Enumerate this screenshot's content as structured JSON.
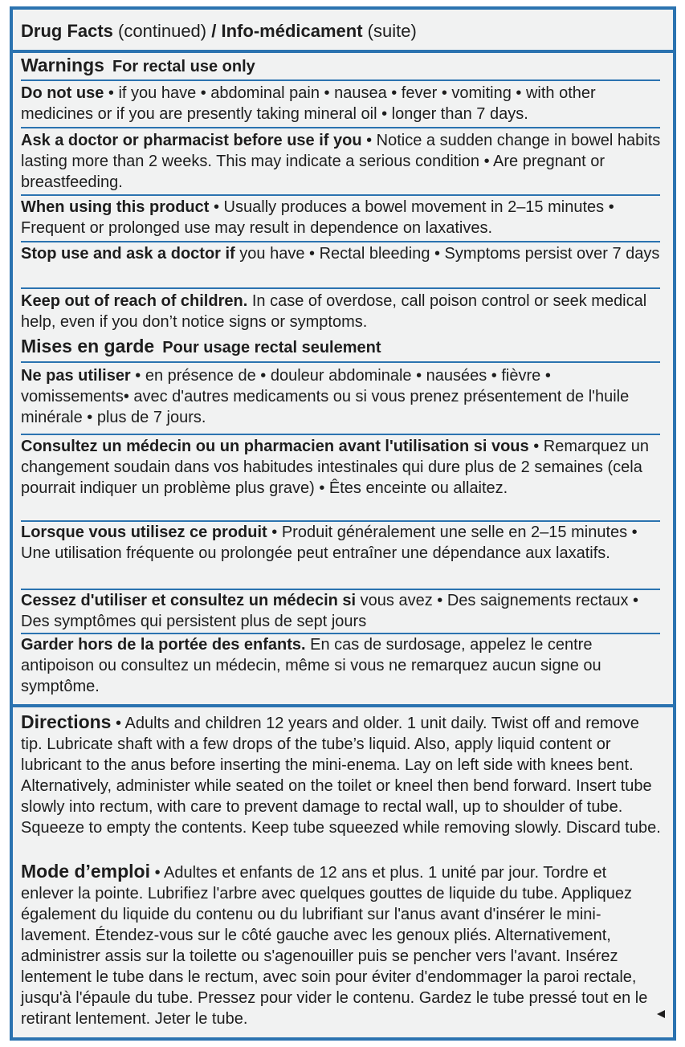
{
  "header": {
    "title": "Drug Facts",
    "title_note": "(continued)",
    "separator": "/",
    "title_fr": "Info-médicament",
    "title_fr_note": "(suite)"
  },
  "warnings": {
    "heading": "Warnings",
    "subheading": "For rectal use only",
    "items": [
      {
        "lead": "Do not use",
        "text": "• if you have • abdominal pain • nausea • fever • vomiting • with other medicines or if you are presently taking mineral oil • longer than 7 days."
      },
      {
        "lead": "Ask a doctor or pharmacist before use if you",
        "text": "• Notice a sudden change in bowel habits lasting more than 2 weeks. This may indicate a serious condition • Are pregnant or breastfeeding."
      },
      {
        "lead": "When using this product",
        "text": "• Usually produces a bowel movement in 2–15 minutes • Frequent or prolonged use may result in dependence on laxatives."
      },
      {
        "lead": "Stop use and ask a doctor if",
        "text": "you have • Rectal bleeding • Symptoms persist over 7 days"
      },
      {
        "lead": "Keep out of reach of children.",
        "text": "In case of overdose, call poison control or seek medical help, even if you don’t notice signs or symptoms."
      }
    ]
  },
  "mises_en_garde": {
    "heading": "Mises en garde",
    "subheading": "Pour usage rectal seulement",
    "items": [
      {
        "lead": "Ne pas utiliser",
        "text": "• en présence de • douleur abdominale • nausées • fièvre • vomissements• avec d'autres medicaments ou si vous prenez présentement de l'huile minérale • plus de 7 jours."
      },
      {
        "lead": "Consultez un médecin ou un pharmacien avant l'utilisation si vous",
        "text": "• Remarquez un changement soudain dans vos habitudes intestinales qui dure plus de 2 semaines (cela pourrait indiquer un problème plus grave) • Êtes enceinte ou allaitez."
      },
      {
        "lead": "Lorsque vous utilisez ce produit",
        "text": "• Produit généralement une selle en 2–15 minutes • Une utilisation fréquente ou prolongée peut entraîner une dépendance aux laxatifs."
      },
      {
        "lead": "Cessez d'utiliser et consultez un médecin si",
        "text": "vous avez • Des saignements rectaux • Des symptômes qui persistent plus de sept jours"
      },
      {
        "lead": "Garder hors de la portée des enfants.",
        "text": "En cas de surdosage, appelez le centre antipoison ou consultez un médecin, même si vous ne remarquez aucun signe ou symptôme."
      }
    ]
  },
  "directions": {
    "heading": "Directions",
    "text": "• Adults and children 12 years and older. 1 unit daily. Twist off and remove tip. Lubricate shaft with a few drops of the tube’s liquid. Also, apply liquid content or lubricant to the anus before inserting the mini-enema. Lay on left side with knees bent. Alternatively, administer while seated on the toilet or kneel then bend forward. Insert tube slowly into rectum, with care to prevent damage to rectal wall, up to shoulder of tube. Squeeze to empty the contents. Keep tube squeezed while removing slowly. Discard tube."
  },
  "mode_emploi": {
    "heading": "Mode d’emploi",
    "text": "• Adultes et enfants de 12 ans et plus. 1 unité par jour. Tordre et enlever la pointe. Lubrifiez l'arbre avec quelques gouttes de liquide du tube. Appliquez également du liquide du contenu ou du lubrifiant sur l'anus avant d'insérer le mini-lavement. Étendez-vous sur le côté gauche avec les genoux pliés. Alternativement, administrer assis sur la toilette ou s'agenouiller puis se pencher vers l'avant. Insérez lentement le tube dans le rectum, avec soin pour éviter d'endommager la paroi rectale, jusqu'à l'épaule du tube. Pressez pour vider le contenu. Gardez le tube pressé tout en le retirant lentement. Jeter le tube."
  }
}
